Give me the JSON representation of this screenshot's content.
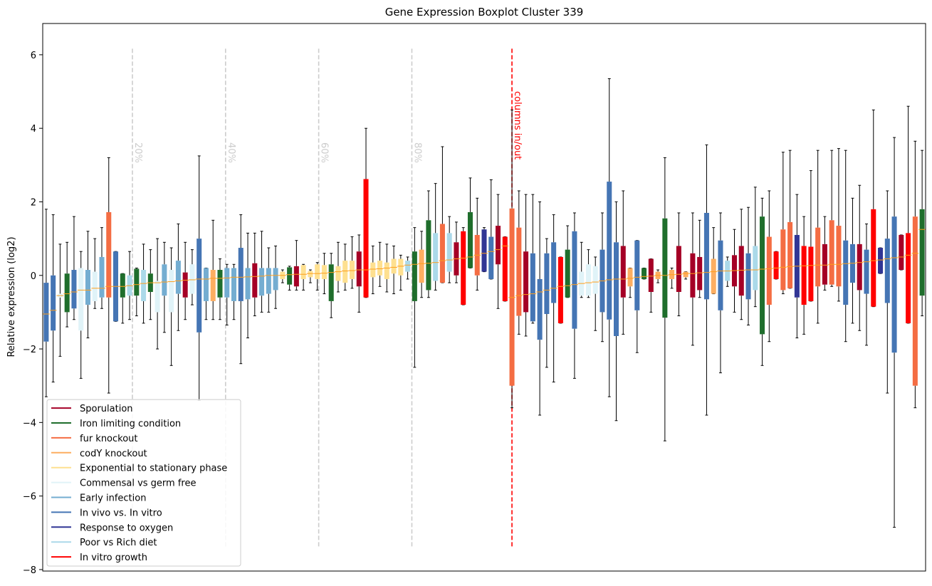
{
  "chart_data": {
    "type": "boxplot",
    "title": "Gene Expression Boxplot Cluster 339",
    "y_label": "Relative expression (log2)",
    "ylim": [
      -8.04,
      6.85
    ],
    "xlim": [
      -0.5,
      126.5
    ],
    "yticks": [
      {
        "value": -8,
        "label": "−8"
      },
      {
        "value": -6,
        "label": "−6"
      },
      {
        "value": -4,
        "label": "−4"
      },
      {
        "value": -2,
        "label": "−2"
      },
      0,
      2,
      4,
      6
    ],
    "median_color": "#ff9f1c",
    "legend_loc": "lower left",
    "legend": [
      {
        "name": "Sporulation",
        "color": "#a50026"
      },
      {
        "name": "Iron limiting condition",
        "color": "#1f6e2c"
      },
      {
        "name": "fur knockout",
        "color": "#f46d43"
      },
      {
        "name": "codY knockout",
        "color": "#fdae61"
      },
      {
        "name": "Exponential to stationary phase",
        "color": "#fee090"
      },
      {
        "name": "Commensal vs germ free",
        "color": "#e0f3f8"
      },
      {
        "name": "Early infection",
        "color": "#74add1"
      },
      {
        "name": "In vivo vs. In vitro",
        "color": "#4575b4"
      },
      {
        "name": "Response to oxygen",
        "color": "#313695"
      },
      {
        "name": "Poor vs Rich diet",
        "color": "#abd9e9"
      },
      {
        "name": "In vitro growth",
        "color": "#ff0000"
      }
    ],
    "vlines": [
      {
        "x": 12.4,
        "y": [
          -7.37,
          6.2
        ],
        "label": "20%",
        "color": "#cccccc"
      },
      {
        "x": 25.8,
        "y": [
          -7.37,
          6.2
        ],
        "label": "40%",
        "color": "#cccccc"
      },
      {
        "x": 39.2,
        "y": [
          -7.37,
          6.2
        ],
        "label": "60%",
        "color": "#cccccc"
      },
      {
        "x": 52.6,
        "y": [
          -7.37,
          6.2
        ],
        "label": "80%",
        "color": "#cccccc"
      },
      {
        "x": 67.0,
        "y": [
          -7.37,
          6.2
        ],
        "label": "columns in/out",
        "color": "#ff0000"
      }
    ],
    "boxes": [
      [
        -3.3,
        -1.8,
        -1.05,
        -0.2,
        1.8
      ],
      [
        -2.9,
        -1.5,
        -0.95,
        0,
        1.65
      ],
      [
        -2.2,
        -0.6,
        -0.55,
        -0.5,
        0.85
      ],
      [
        -1.4,
        -1,
        -0.5,
        0.05,
        0.9
      ],
      [
        -1.2,
        -0.9,
        -0.45,
        0.15,
        1.6
      ],
      [
        -2.8,
        -1.5,
        -0.4,
        0.2,
        0.65
      ],
      [
        -1.7,
        -0.8,
        -0.4,
        0.15,
        1.2
      ],
      [
        -0.9,
        -0.7,
        -0.35,
        0.1,
        1
      ],
      [
        -0.9,
        -0.6,
        -0.35,
        0.5,
        1.3
      ],
      [
        -3.2,
        -0.6,
        -0.3,
        1.72,
        3.2
      ],
      [
        -1.25,
        -1.25,
        -0.3,
        0.65,
        0.65
      ],
      [
        -1.3,
        -0.6,
        -0.3,
        0.05,
        0.05
      ],
      [
        -1.2,
        -0.55,
        -0.28,
        0,
        0.65
      ],
      [
        -1.1,
        -0.55,
        -0.25,
        0.18,
        0.2
      ],
      [
        -1.3,
        -0.7,
        -0.22,
        0.15,
        0.85
      ],
      [
        -1.2,
        -0.45,
        -0.2,
        0.05,
        0.7
      ],
      [
        -2,
        -1,
        -0.2,
        -0.15,
        1
      ],
      [
        -1.55,
        -0.55,
        -0.18,
        0.3,
        0.9
      ],
      [
        -2.45,
        -1,
        -0.17,
        0.15,
        0.75
      ],
      [
        -1.5,
        -0.5,
        -0.15,
        0.4,
        1.4
      ],
      [
        -1.2,
        -0.6,
        -0.13,
        0.08,
        0.9
      ],
      [
        -0.8,
        -0.5,
        -0.12,
        0.3,
        0.7
      ],
      [
        -3.4,
        -1.55,
        -0.1,
        1,
        3.25
      ],
      [
        -1.2,
        -0.7,
        -0.1,
        0.2,
        0.2
      ],
      [
        -1.2,
        -0.7,
        -0.08,
        0.15,
        1.5
      ],
      [
        -1.2,
        -0.6,
        -0.08,
        0.15,
        0.45
      ],
      [
        -1.35,
        -0.6,
        -0.07,
        0.2,
        0.3
      ],
      [
        -1.2,
        -0.7,
        -0.05,
        0.2,
        0.3
      ],
      [
        -2.4,
        -0.7,
        -0.05,
        0.75,
        1.65
      ],
      [
        -1.7,
        -0.65,
        -0.04,
        0.2,
        1.15
      ],
      [
        -1.1,
        -0.6,
        -0.03,
        0.33,
        1.15
      ],
      [
        -1,
        -0.55,
        -0.02,
        0.2,
        1.2
      ],
      [
        -1,
        -0.5,
        0,
        0.2,
        0.75
      ],
      [
        -0.9,
        -0.4,
        0,
        0.2,
        0.8
      ],
      [
        -0.2,
        -0.1,
        0,
        0.1,
        0.15
      ],
      [
        -0.4,
        -0.25,
        0.02,
        0.22,
        0.25
      ],
      [
        -0.4,
        -0.3,
        0.03,
        0.25,
        0.95
      ],
      [
        -0.4,
        -0.1,
        0.03,
        0.28,
        0.3
      ],
      [
        -0.2,
        -0.05,
        0.05,
        0.12,
        0.15
      ],
      [
        -0.4,
        -0.1,
        0.05,
        0.3,
        0.35
      ],
      [
        -0.5,
        -0.1,
        0.06,
        0.28,
        0.6
      ],
      [
        -1.15,
        -0.7,
        0.08,
        0.3,
        0.6
      ],
      [
        -0.45,
        -0.15,
        0.1,
        0.25,
        0.9
      ],
      [
        -0.4,
        -0.2,
        0.12,
        0.4,
        0.85
      ],
      [
        -0.35,
        -0.1,
        0.13,
        0.4,
        1.05
      ],
      [
        -1,
        -0.3,
        0.15,
        0.65,
        1.1
      ],
      [
        -0.6,
        -0.6,
        0.15,
        2.62,
        4
      ],
      [
        -0.5,
        -0.05,
        0.17,
        0.35,
        0.8
      ],
      [
        -0.3,
        0,
        0.18,
        0.4,
        0.9
      ],
      [
        -0.45,
        -0.1,
        0.2,
        0.35,
        0.85
      ],
      [
        -0.5,
        0.05,
        0.22,
        0.45,
        0.8
      ],
      [
        -0.4,
        0,
        0.25,
        0.45,
        0.55
      ],
      [
        -0.1,
        0.1,
        0.28,
        0.4,
        0.5
      ],
      [
        -2.5,
        -0.7,
        0.3,
        0.65,
        1.3
      ],
      [
        -0.6,
        -0.2,
        0.32,
        0.7,
        1.2
      ],
      [
        -0.6,
        -0.4,
        0.33,
        1.5,
        2.3
      ],
      [
        -0.4,
        -0.15,
        0.35,
        1.15,
        2.5
      ],
      [
        -0.2,
        -0.2,
        0.4,
        1.4,
        3.5
      ],
      [
        -0.2,
        0.1,
        0.42,
        1.15,
        1.6
      ],
      [
        -0.2,
        0,
        0.45,
        0.9,
        1.45
      ],
      [
        -0.8,
        -0.8,
        0.47,
        1.2,
        1.3
      ],
      [
        0.2,
        0.2,
        0.5,
        1.72,
        2.65
      ],
      [
        -0.4,
        0,
        0.55,
        1.1,
        2.1
      ],
      [
        0.1,
        0.1,
        0.6,
        1.25,
        1.3
      ],
      [
        -0.1,
        -0.1,
        0.65,
        1.05,
        2.6
      ],
      [
        -0.9,
        0.3,
        0.7,
        1.35,
        2.2
      ],
      [
        -0.7,
        -0.7,
        0.8,
        1.05,
        1.05
      ],
      [
        -3.6,
        -3,
        -0.6,
        1.82,
        4.5
      ],
      [
        -1.6,
        -1.1,
        -0.55,
        1.3,
        2.3
      ],
      [
        -1.65,
        -1,
        -0.52,
        0.65,
        2.2
      ],
      [
        -1.3,
        -1.25,
        -0.5,
        0.6,
        2.2
      ],
      [
        -3.8,
        -1.75,
        -0.45,
        -0.1,
        2
      ],
      [
        -2.5,
        -1.05,
        -0.4,
        0.6,
        1
      ],
      [
        -2.9,
        -0.75,
        -0.35,
        0.9,
        1.65
      ],
      [
        -1.3,
        -1.3,
        -0.3,
        0.5,
        0.5
      ],
      [
        -0.6,
        -0.6,
        -0.28,
        0.7,
        1.35
      ],
      [
        -2.8,
        -1.45,
        -0.25,
        1.2,
        1.7
      ],
      [
        -0.6,
        -0.55,
        -0.22,
        0.1,
        0.9
      ],
      [
        -0.6,
        -0.55,
        -0.2,
        0.3,
        0.7
      ],
      [
        -1.5,
        -0.5,
        -0.18,
        0.25,
        0.5
      ],
      [
        -1.8,
        -1,
        -0.15,
        0.7,
        1.7
      ],
      [
        -3.3,
        -1.2,
        -0.12,
        2.55,
        5.35
      ],
      [
        -3.95,
        -1.65,
        -0.1,
        0.9,
        2
      ],
      [
        -1.6,
        -0.6,
        -0.1,
        0.8,
        2.3
      ],
      [
        -0.6,
        -0.3,
        -0.08,
        0.2,
        0.2
      ],
      [
        -2.1,
        -0.95,
        -0.05,
        0.95,
        0.95
      ],
      [
        -0.1,
        -0.1,
        -0.03,
        0.2,
        0.2
      ],
      [
        -1,
        -0.45,
        -0.02,
        0.45,
        0.45
      ],
      [
        -0.2,
        -0.1,
        0,
        0.1,
        0.15
      ],
      [
        -4.5,
        -1.15,
        0,
        1.55,
        3.2
      ],
      [
        -0.35,
        -0.1,
        0.02,
        0.15,
        0.2
      ],
      [
        -1.1,
        -0.45,
        0.03,
        0.8,
        1.7
      ],
      [
        -0.1,
        -0.05,
        0.05,
        0.1,
        0.1
      ],
      [
        -1.9,
        -0.6,
        0.05,
        0.6,
        1.7
      ],
      [
        -0.6,
        -0.4,
        0.07,
        0.5,
        1.5
      ],
      [
        -3.8,
        -0.65,
        0.08,
        1.7,
        3.55
      ],
      [
        -0.5,
        -0.5,
        0.1,
        0.45,
        1.3
      ],
      [
        -2.65,
        -0.95,
        0.12,
        0.95,
        1.7
      ],
      [
        -0.3,
        -0.15,
        0.12,
        0.4,
        0.5
      ],
      [
        -1,
        -0.3,
        0.13,
        0.55,
        1.25
      ],
      [
        -1.2,
        -0.55,
        0.14,
        0.8,
        1.8
      ],
      [
        -1.35,
        -0.65,
        0.15,
        0.6,
        1.85
      ],
      [
        -0.85,
        -0.4,
        0.15,
        0.8,
        2.4
      ],
      [
        -2.45,
        -1.6,
        0.17,
        1.6,
        2.1
      ],
      [
        -1.8,
        -0.8,
        0.18,
        1.05,
        2.3
      ],
      [
        -0.1,
        -0.1,
        0.2,
        0.65,
        0.65
      ],
      [
        -0.5,
        -0.4,
        0.22,
        1.25,
        3.35
      ],
      [
        -0.35,
        -0.35,
        0.24,
        1.45,
        3.4
      ],
      [
        -1.7,
        -0.6,
        0.25,
        1.1,
        2.2
      ],
      [
        -1.6,
        -0.8,
        0.26,
        0.8,
        1.6
      ],
      [
        -0.7,
        -0.7,
        0.27,
        0.78,
        2.85
      ],
      [
        -1.3,
        -0.3,
        0.28,
        1.3,
        3.4
      ],
      [
        -0.4,
        -0.25,
        0.28,
        0.85,
        1.6
      ],
      [
        -0.3,
        -0.25,
        0.3,
        1.5,
        3.4
      ],
      [
        -0.7,
        -0.3,
        0.3,
        1.35,
        3.45
      ],
      [
        -1.8,
        -0.8,
        0.32,
        0.95,
        3.4
      ],
      [
        -1.3,
        -0.2,
        0.33,
        0.85,
        2.1
      ],
      [
        -1.5,
        -0.4,
        0.35,
        0.85,
        2.45
      ],
      [
        -1.9,
        -0.5,
        0.37,
        0.7,
        1.4
      ],
      [
        -0.85,
        -0.85,
        0.4,
        1.8,
        4.5
      ],
      [
        0.05,
        0.05,
        0.42,
        0.75,
        0.75
      ],
      [
        -3.2,
        -0.75,
        0.45,
        1,
        2.3
      ],
      [
        -6.85,
        -2.1,
        0.48,
        1.6,
        3.75
      ],
      [
        0.15,
        0.15,
        0.5,
        1.1,
        1.1
      ],
      [
        -1.3,
        -1.3,
        0.55,
        1.15,
        4.6
      ],
      [
        -3.6,
        -3,
        0.6,
        1.6,
        3.65
      ],
      [
        -1.1,
        -0.55,
        1.25,
        1.8,
        3.4
      ]
    ],
    "box_groups": [
      7,
      7,
      5,
      1,
      7,
      5,
      6,
      5,
      6,
      2,
      7,
      1,
      9,
      1,
      9,
      1,
      5,
      6,
      5,
      6,
      0,
      5,
      7,
      6,
      3,
      1,
      6,
      6,
      7,
      6,
      0,
      6,
      6,
      6,
      4,
      1,
      0,
      4,
      4,
      4,
      4,
      1,
      4,
      4,
      4,
      0,
      10,
      4,
      4,
      4,
      4,
      4,
      9,
      1,
      3,
      1,
      9,
      2,
      9,
      0,
      10,
      1,
      2,
      8,
      7,
      0,
      10,
      2,
      2,
      0,
      7,
      7,
      7,
      7,
      10,
      1,
      7,
      5,
      5,
      5,
      7,
      7,
      7,
      0,
      3,
      7,
      1,
      0,
      3,
      1,
      3,
      0,
      3,
      0,
      0,
      7,
      3,
      7,
      9,
      0,
      0,
      7,
      9,
      1,
      2,
      10,
      2,
      2,
      8,
      10,
      10,
      2,
      0,
      2,
      2,
      7,
      7,
      0,
      7,
      10,
      8,
      7,
      7,
      0,
      10,
      2,
      1
    ]
  }
}
